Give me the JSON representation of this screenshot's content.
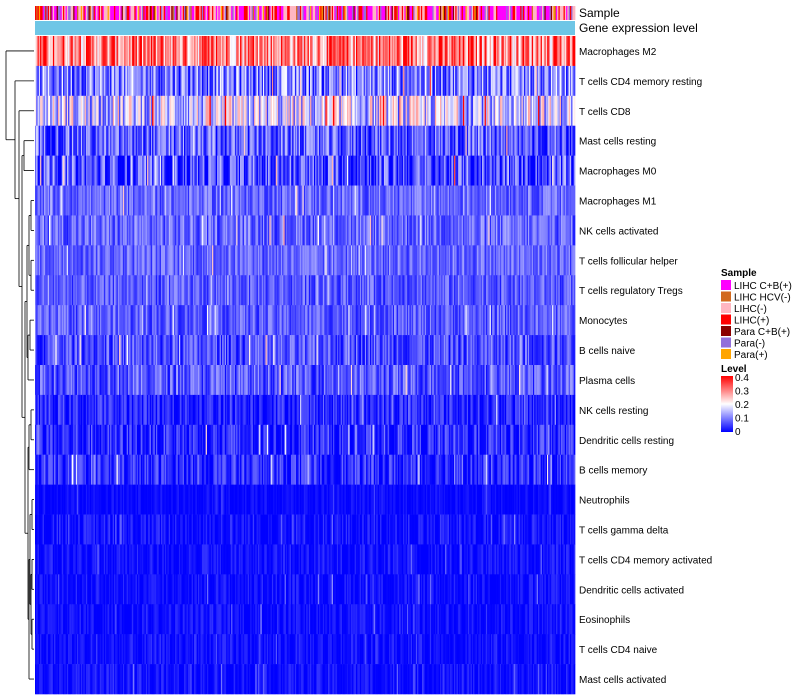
{
  "chart_data": {
    "type": "heatmap",
    "title": "",
    "annotation_tracks": [
      "Sample",
      "Gene expression level"
    ],
    "rows": [
      {
        "label": "Macrophages M2",
        "mean": 0.3,
        "spread": 0.12
      },
      {
        "label": "T cells CD4 memory resting",
        "mean": 0.1,
        "spread": 0.1
      },
      {
        "label": "T cells CD8",
        "mean": 0.16,
        "spread": 0.12
      },
      {
        "label": "Mast cells resting",
        "mean": 0.07,
        "spread": 0.08
      },
      {
        "label": "Macrophages M0",
        "mean": 0.05,
        "spread": 0.1
      },
      {
        "label": "Macrophages M1",
        "mean": 0.08,
        "spread": 0.05
      },
      {
        "label": "NK cells activated",
        "mean": 0.08,
        "spread": 0.06
      },
      {
        "label": "T cells follicular helper",
        "mean": 0.08,
        "spread": 0.05
      },
      {
        "label": "T cells regulatory  Tregs",
        "mean": 0.07,
        "spread": 0.05
      },
      {
        "label": "Monocytes",
        "mean": 0.07,
        "spread": 0.05
      },
      {
        "label": "B cells naive",
        "mean": 0.06,
        "spread": 0.06
      },
      {
        "label": "Plasma cells",
        "mean": 0.07,
        "spread": 0.06
      },
      {
        "label": "NK cells resting",
        "mean": 0.03,
        "spread": 0.05
      },
      {
        "label": "Dendritic cells resting",
        "mean": 0.03,
        "spread": 0.06
      },
      {
        "label": "B cells memory",
        "mean": 0.03,
        "spread": 0.06
      },
      {
        "label": "Neutrophils",
        "mean": 0.005,
        "spread": 0.02
      },
      {
        "label": "T cells gamma delta",
        "mean": 0.01,
        "spread": 0.04
      },
      {
        "label": "T cells CD4 memory activated",
        "mean": 0.01,
        "spread": 0.03
      },
      {
        "label": "Dendritic cells activated",
        "mean": 0.01,
        "spread": 0.03
      },
      {
        "label": "Eosinophils",
        "mean": 0.01,
        "spread": 0.03
      },
      {
        "label": "T cells CD4 naive",
        "mean": 0.01,
        "spread": 0.03
      },
      {
        "label": "Mast cells activated",
        "mean": 0.01,
        "spread": 0.03
      }
    ],
    "sample_legend": {
      "title": "Sample",
      "entries": [
        {
          "label": "LIHC C+B(+)",
          "color": "#ff00ff"
        },
        {
          "label": "LIHC HCV(-)",
          "color": "#d2691e"
        },
        {
          "label": "LIHC(-)",
          "color": "#ffb6c1"
        },
        {
          "label": "LIHC(+)",
          "color": "#ff0000"
        },
        {
          "label": "Para C+B(+)",
          "color": "#8b0000"
        },
        {
          "label": "Para(-)",
          "color": "#9370db"
        },
        {
          "label": "Para(+)",
          "color": "#ffa500"
        }
      ]
    },
    "level_legend": {
      "title": "Level",
      "ticks": [
        "0.4",
        "0.3",
        "0.2",
        "0.1",
        "0"
      ],
      "range": [
        0,
        0.4
      ],
      "colors": [
        "#0000ff",
        "#ffffff",
        "#ff0000"
      ]
    },
    "gene_expression_color": "#6ec6e6",
    "num_samples": 424
  }
}
